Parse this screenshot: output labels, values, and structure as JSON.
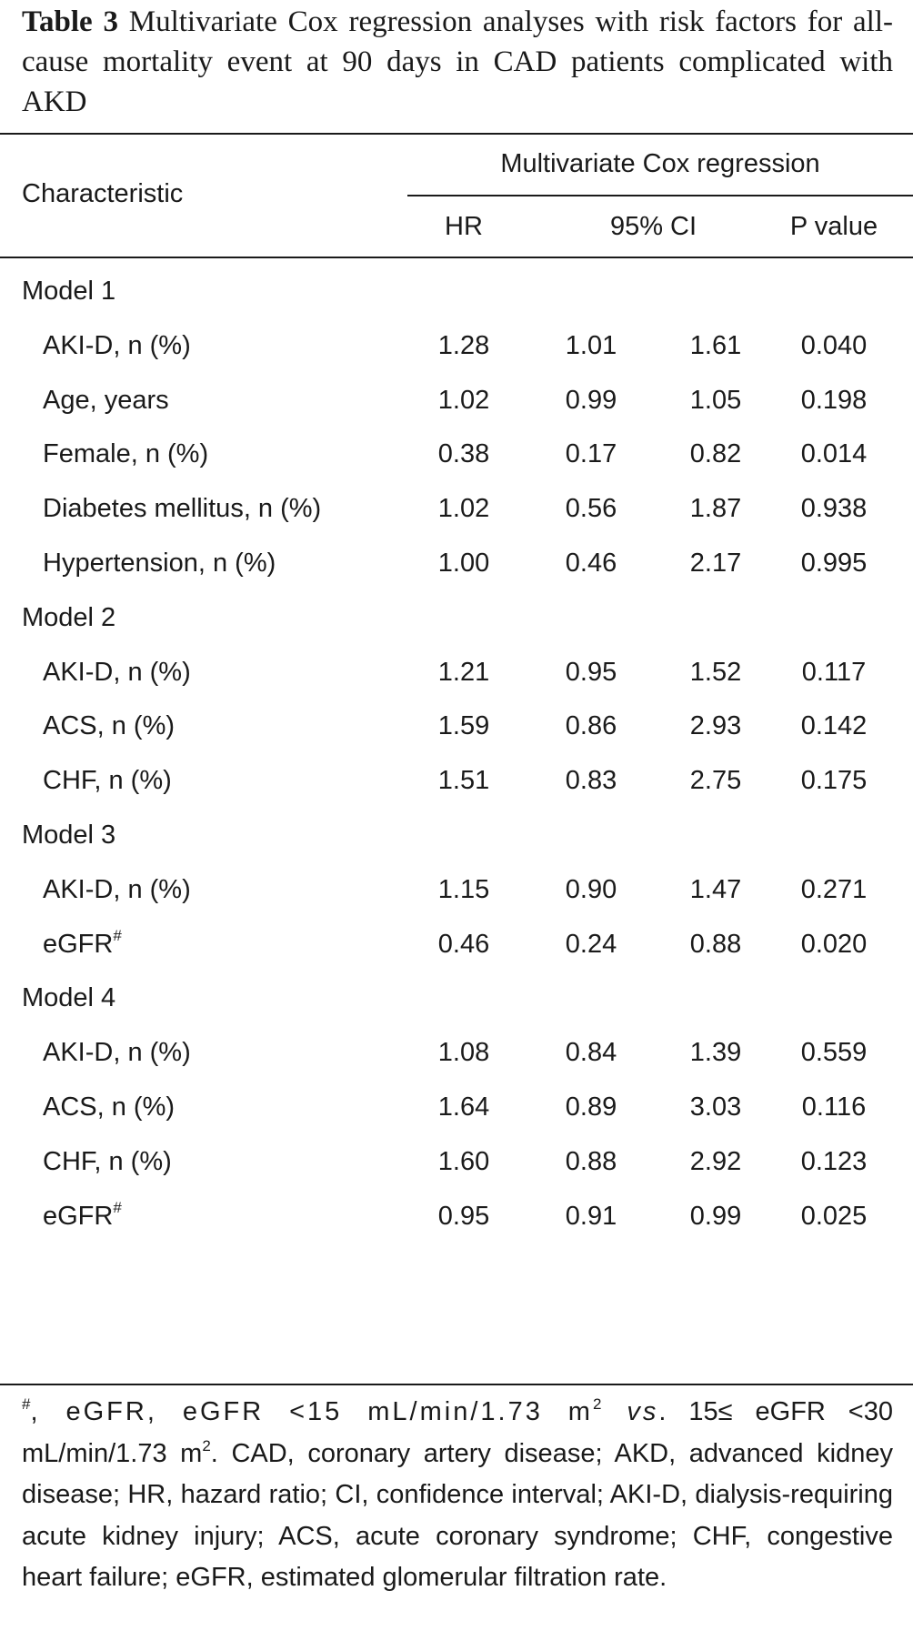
{
  "caption": {
    "label": "Table 3",
    "text": "Multivariate Cox regression analyses with risk factors for all-cause mortality event at 90 days in CAD patients complicated with AKD"
  },
  "header": {
    "group": "Multivariate Cox regression",
    "characteristic": "Characteristic",
    "hr": "HR",
    "ci": "95% CI",
    "p": "P value"
  },
  "rows": [
    {
      "label": "Model 1"
    },
    {
      "label": "AKI-D, n (%)",
      "hr": "1.28",
      "lo": "1.01",
      "hi": "1.61",
      "p": "0.040"
    },
    {
      "label": "Age, years",
      "hr": "1.02",
      "lo": "0.99",
      "hi": "1.05",
      "p": "0.198"
    },
    {
      "label": "Female, n (%)",
      "hr": "0.38",
      "lo": "0.17",
      "hi": "0.82",
      "p": "0.014"
    },
    {
      "label": "Diabetes mellitus, n (%)",
      "hr": "1.02",
      "lo": "0.56",
      "hi": "1.87",
      "p": "0.938"
    },
    {
      "label": "Hypertension, n (%)",
      "hr": "1.00",
      "lo": "0.46",
      "hi": "2.17",
      "p": "0.995"
    },
    {
      "label": "Model 2"
    },
    {
      "label": "AKI-D, n (%)",
      "hr": "1.21",
      "lo": "0.95",
      "hi": "1.52",
      "p": "0.117"
    },
    {
      "label": "ACS, n (%)",
      "hr": "1.59",
      "lo": "0.86",
      "hi": "2.93",
      "p": "0.142"
    },
    {
      "label": "CHF, n (%)",
      "hr": "1.51",
      "lo": "0.83",
      "hi": "2.75",
      "p": "0.175"
    },
    {
      "label": "Model 3"
    },
    {
      "label": "AKI-D, n (%)",
      "hr": "1.15",
      "lo": "0.90",
      "hi": "1.47",
      "p": "0.271"
    },
    {
      "label": "eGFR",
      "mark": "#",
      "hr": "0.46",
      "lo": "0.24",
      "hi": "0.88",
      "p": "0.020"
    },
    {
      "label": "Model 4"
    },
    {
      "label": "AKI-D, n (%)",
      "hr": "1.08",
      "lo": "0.84",
      "hi": "1.39",
      "p": "0.559"
    },
    {
      "label": "ACS, n (%)",
      "hr": "1.64",
      "lo": "0.89",
      "hi": "3.03",
      "p": "0.116"
    },
    {
      "label": "CHF, n (%)",
      "hr": "1.60",
      "lo": "0.88",
      "hi": "2.92",
      "p": "0.123"
    },
    {
      "label": "eGFR",
      "mark": "#",
      "hr": "0.95",
      "lo": "0.91",
      "hi": "0.99",
      "p": "0.025"
    }
  ],
  "footnote": {
    "mark": "#",
    "part1": ", eGFR, eGFR <15 mL/min/1.73 m",
    "sup1": "2",
    "vs": "vs",
    "part2": ". 15≤ eGFR <30 mL/min/1.73 m",
    "sup2": "2",
    "part3": ". CAD, coronary artery disease; AKD, advanced kidney disease; HR, hazard ratio; CI, confidence interval; AKI-D, dialysis-requiring acute kidney injury; ACS, acute coronary syndrome; CHF, congestive heart failure; eGFR, estimated glomerular filtration rate."
  }
}
